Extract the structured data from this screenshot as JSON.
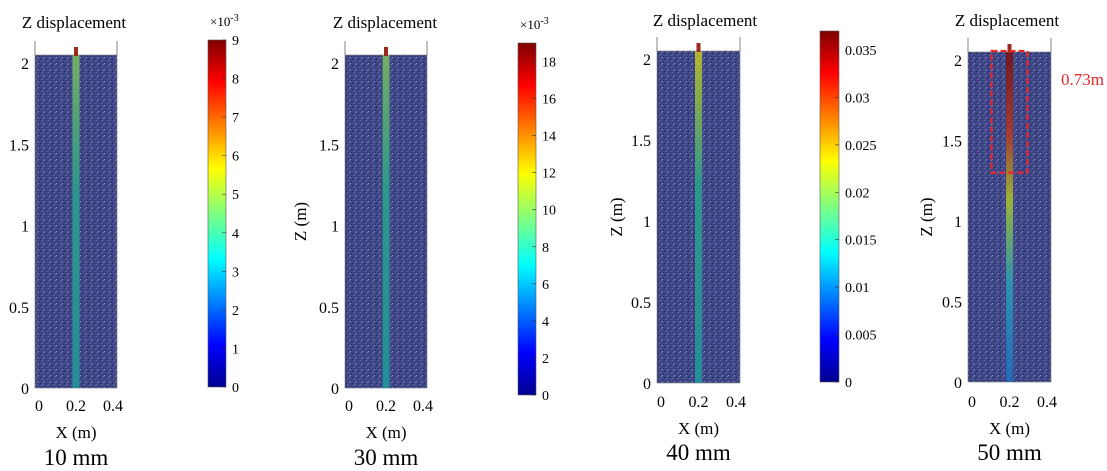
{
  "panels": [
    {
      "title": "Z displacement",
      "ylabel": "",
      "xlabel": "X (m)",
      "caption": "10 mm",
      "xticks": [
        "0",
        "0.2",
        "0.4"
      ],
      "yticks": [
        "0",
        "0.5",
        "1",
        "1.5",
        "2"
      ],
      "colorbar": {
        "exponent": "×10",
        "exponent_power": "-3",
        "max": 9,
        "ticks": [
          "0",
          "1",
          "2",
          "3",
          "4",
          "5",
          "6",
          "7",
          "8",
          "9"
        ],
        "tick_values": [
          0,
          1,
          2,
          3,
          4,
          5,
          6,
          7,
          8,
          9
        ]
      },
      "pile_peak_fraction": 0.55
    },
    {
      "title": "Z displacement",
      "ylabel": "Z (m)",
      "xlabel": "X (m)",
      "caption": "30 mm",
      "xticks": [
        "0",
        "0.2",
        "0.4"
      ],
      "yticks": [
        "0",
        "0.5",
        "1",
        "1.5",
        "2"
      ],
      "colorbar": {
        "exponent": "×10",
        "exponent_power": "-3",
        "max": 19,
        "ticks": [
          "0",
          "2",
          "4",
          "6",
          "8",
          "10",
          "12",
          "14",
          "16",
          "18"
        ],
        "tick_values": [
          0,
          2,
          4,
          6,
          8,
          10,
          12,
          14,
          16,
          18
        ]
      },
      "pile_peak_fraction": 0.6
    },
    {
      "title": "Z displacement",
      "ylabel": "Z (m)",
      "xlabel": "X (m)",
      "caption": "40 mm",
      "xticks": [
        "0",
        "0.2",
        "0.4"
      ],
      "yticks": [
        "0",
        "0.5",
        "1",
        "1.5",
        "2"
      ],
      "colorbar": {
        "exponent": "",
        "exponent_power": "",
        "max": 0.037,
        "ticks": [
          "0",
          "0.005",
          "0.01",
          "0.015",
          "0.02",
          "0.025",
          "0.03",
          "0.035"
        ],
        "tick_values": [
          0,
          0.005,
          0.01,
          0.015,
          0.02,
          0.025,
          0.03,
          0.035
        ]
      },
      "pile_peak_fraction": 0.68
    },
    {
      "title": "Z displacement",
      "ylabel": "Z (m)",
      "xlabel": "X (m)",
      "caption": "50 mm",
      "xticks": [
        "0",
        "0.2",
        "0.4"
      ],
      "yticks": [
        "0",
        "0.5",
        "1",
        "1.5",
        "2"
      ],
      "colorbar": null,
      "pile_peak_fraction": 1.0,
      "annotation": {
        "text": "0.73m",
        "color": "#e8252b"
      }
    }
  ],
  "colors": {
    "soil": "#3e4585",
    "annotation": "#e8252b",
    "jet": [
      "#00008f",
      "#0000ff",
      "#00ffff",
      "#ffff00",
      "#ff0000",
      "#800000"
    ]
  }
}
